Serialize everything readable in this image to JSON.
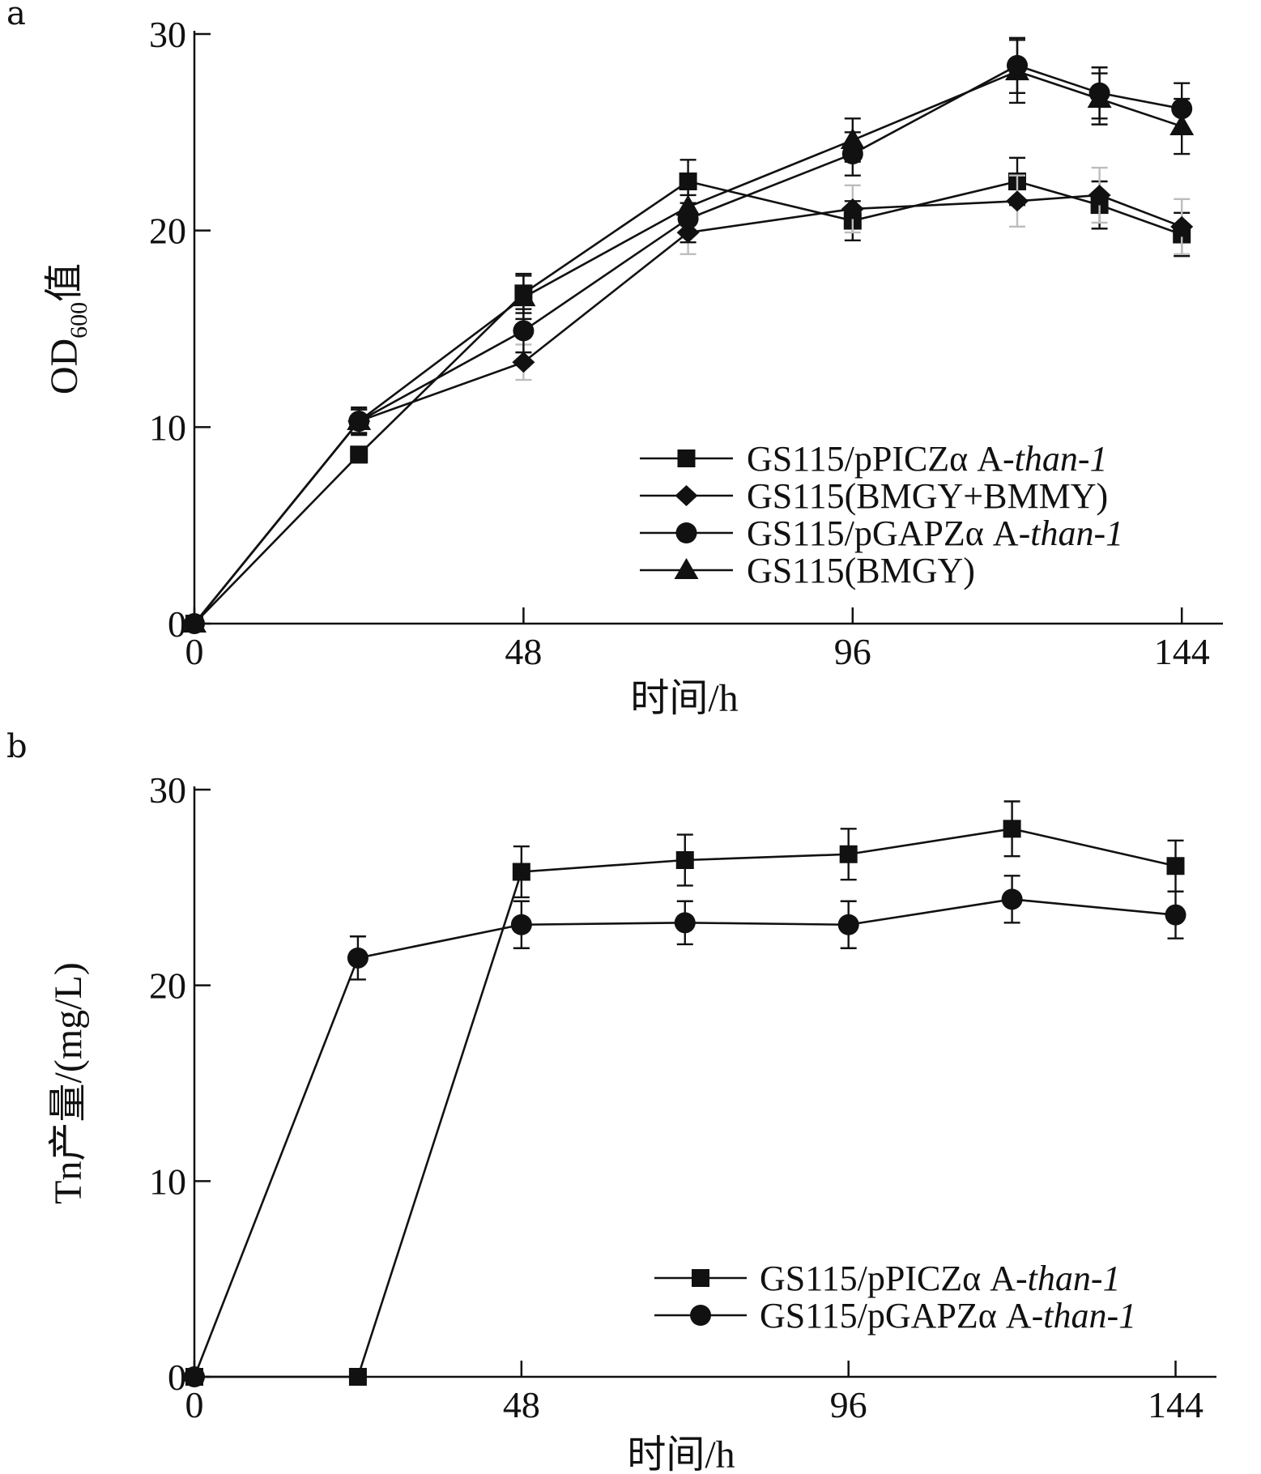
{
  "panels": [
    {
      "letter": "a",
      "chart_data": {
        "type": "line",
        "ylabel_main": "OD",
        "ylabel_sub": "600",
        "ylabel_suffix": "值",
        "xlabel": "时间/h",
        "xlim": [
          0,
          150
        ],
        "ylim": [
          0,
          30
        ],
        "xticks": [
          0,
          48,
          96,
          144
        ],
        "yticks": [
          0,
          10,
          20,
          30
        ],
        "legend_position": "bottom-right",
        "series": [
          {
            "name": "GS115/pPICZα A-",
            "name_italic": "than-1",
            "marker": "square",
            "x": [
              0,
              24,
              48,
              72,
              96,
              120,
              132,
              144
            ],
            "y": [
              0,
              8.6,
              16.8,
              22.5,
              20.5,
              22.5,
              21.3,
              19.8
            ],
            "err": [
              0,
              0.4,
              1.0,
              1.1,
              1.0,
              1.2,
              1.2,
              1.1
            ],
            "err_color": [
              "black",
              "black",
              "black",
              "black",
              "black",
              "black",
              "black",
              "black"
            ]
          },
          {
            "name": "GS115(BMGY+BMMY)",
            "name_italic": "",
            "marker": "diamond",
            "x": [
              0,
              24,
              48,
              72,
              96,
              120,
              132,
              144
            ],
            "y": [
              0,
              10.3,
              13.3,
              19.9,
              21.1,
              21.5,
              21.8,
              20.2
            ],
            "err": [
              0,
              0.6,
              0.9,
              1.1,
              1.2,
              1.3,
              1.4,
              1.4
            ],
            "err_color": [
              "black",
              "black",
              "grey",
              "grey",
              "grey",
              "grey",
              "grey",
              "grey"
            ]
          },
          {
            "name": "GS115/pGAPZα A-",
            "name_italic": "than-1",
            "marker": "circle",
            "x": [
              0,
              24,
              48,
              72,
              96,
              120,
              132,
              144
            ],
            "y": [
              0,
              10.3,
              14.9,
              20.6,
              23.9,
              28.4,
              27.0,
              26.2
            ],
            "err": [
              0,
              0.7,
              1.1,
              1.2,
              1.1,
              1.4,
              1.3,
              1.3
            ],
            "err_color": [
              "black",
              "black",
              "black",
              "black",
              "black",
              "black",
              "black",
              "black"
            ]
          },
          {
            "name": "GS115(BMGY)",
            "name_italic": "",
            "marker": "triangle",
            "x": [
              0,
              24,
              48,
              72,
              96,
              120,
              132,
              144
            ],
            "y": [
              0,
              10.3,
              16.6,
              21.2,
              24.6,
              28.1,
              26.7,
              25.3
            ],
            "err": [
              0,
              0.6,
              1.1,
              1.2,
              1.1,
              1.6,
              1.3,
              1.4
            ],
            "err_color": [
              "black",
              "black",
              "black",
              "black",
              "black",
              "black",
              "black",
              "black"
            ]
          }
        ]
      }
    },
    {
      "letter": "b",
      "chart_data": {
        "type": "line",
        "ylabel_main": "Tn产量/(mg/L)",
        "ylabel_sub": "",
        "ylabel_suffix": "",
        "xlabel": "时间/h",
        "xlim": [
          0,
          150
        ],
        "ylim": [
          0,
          30
        ],
        "xticks": [
          0,
          48,
          96,
          144
        ],
        "yticks": [
          0,
          10,
          20,
          30
        ],
        "legend_position": "bottom-right",
        "series": [
          {
            "name": "GS115/pPICZα A-",
            "name_italic": "than-1",
            "marker": "square",
            "x": [
              0,
              24,
              48,
              72,
              96,
              120,
              144
            ],
            "y": [
              0,
              0,
              25.8,
              26.4,
              26.7,
              28.0,
              26.1
            ],
            "err": [
              0,
              0,
              1.3,
              1.3,
              1.3,
              1.4,
              1.3
            ],
            "err_color": [
              "black",
              "black",
              "black",
              "black",
              "black",
              "black",
              "black"
            ]
          },
          {
            "name": "GS115/pGAPZα A-",
            "name_italic": "than-1",
            "marker": "circle",
            "x": [
              0,
              24,
              48,
              72,
              96,
              120,
              144
            ],
            "y": [
              0,
              21.4,
              23.1,
              23.2,
              23.1,
              24.4,
              23.6
            ],
            "err": [
              0,
              1.1,
              1.2,
              1.1,
              1.2,
              1.2,
              1.2
            ],
            "err_color": [
              "black",
              "black",
              "black",
              "black",
              "black",
              "black",
              "black"
            ]
          }
        ]
      }
    }
  ]
}
